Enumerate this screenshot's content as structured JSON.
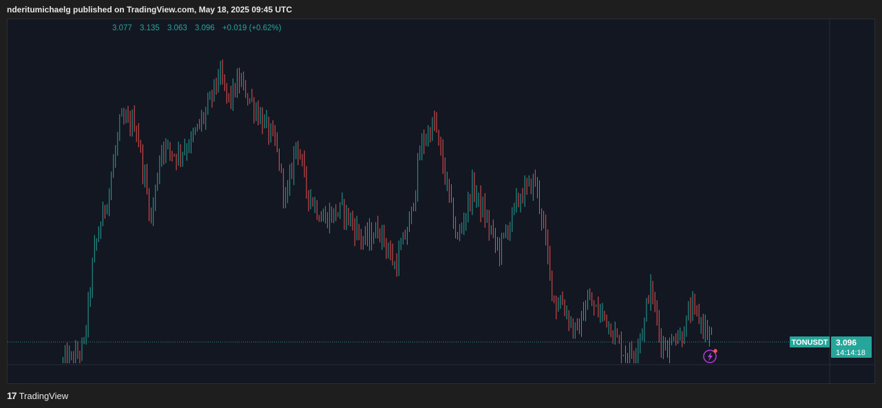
{
  "header": {
    "credit": "nderitumichaelg published on TradingView.com, May 18, 2025 09:45 UTC"
  },
  "ohlc": {
    "open": "3.077",
    "high": "3.135",
    "low": "3.063",
    "close": "3.096",
    "change": "+0.019 (+0.62%)"
  },
  "symbol_badge": {
    "symbol": "TONUSDT",
    "price": "3.096",
    "countdown": "14:14:18"
  },
  "footer": {
    "brand": "TradingView"
  },
  "colors": {
    "up": "#26a69a",
    "down": "#ef5350",
    "background": "#131722",
    "badge": "#26a69a",
    "alert_icon": "#b93bdb"
  },
  "icons": {
    "alert": "lightning-alert-icon"
  },
  "chart_data": {
    "type": "candlestick",
    "symbol": "TONUSDT",
    "grid": false,
    "last_price": 3.096,
    "price_line": "dotted",
    "path": [
      [
        0,
        0.0
      ],
      [
        12,
        0.02
      ],
      [
        20,
        0.05
      ],
      [
        30,
        0.35
      ],
      [
        45,
        0.55
      ],
      [
        55,
        0.75
      ],
      [
        70,
        0.75
      ],
      [
        80,
        0.55
      ],
      [
        85,
        0.45
      ],
      [
        95,
        0.68
      ],
      [
        110,
        0.65
      ],
      [
        125,
        0.7
      ],
      [
        140,
        0.8
      ],
      [
        150,
        0.9
      ],
      [
        160,
        0.82
      ],
      [
        170,
        0.88
      ],
      [
        190,
        0.77
      ],
      [
        205,
        0.68
      ],
      [
        215,
        0.5
      ],
      [
        225,
        0.7
      ],
      [
        235,
        0.54
      ],
      [
        250,
        0.45
      ],
      [
        270,
        0.48
      ],
      [
        290,
        0.38
      ],
      [
        305,
        0.42
      ],
      [
        320,
        0.3
      ],
      [
        335,
        0.45
      ],
      [
        345,
        0.68
      ],
      [
        358,
        0.75
      ],
      [
        372,
        0.52
      ],
      [
        380,
        0.38
      ],
      [
        395,
        0.55
      ],
      [
        410,
        0.43
      ],
      [
        420,
        0.35
      ],
      [
        440,
        0.52
      ],
      [
        455,
        0.57
      ],
      [
        462,
        0.45
      ],
      [
        470,
        0.26
      ],
      [
        475,
        0.18
      ],
      [
        480,
        0.2
      ],
      [
        490,
        0.12
      ],
      [
        495,
        0.09
      ],
      [
        500,
        0.14
      ],
      [
        505,
        0.2
      ],
      [
        515,
        0.16
      ],
      [
        522,
        0.15
      ],
      [
        530,
        0.1
      ],
      [
        537,
        0.05
      ],
      [
        542,
        0.03
      ],
      [
        550,
        0.03
      ],
      [
        555,
        0.08
      ],
      [
        560,
        0.12
      ],
      [
        565,
        0.24
      ],
      [
        570,
        0.18
      ],
      [
        575,
        0.08
      ],
      [
        585,
        0.04
      ],
      [
        588,
        0.1
      ],
      [
        595,
        0.08
      ],
      [
        600,
        0.12
      ],
      [
        605,
        0.17
      ],
      [
        610,
        0.15
      ],
      [
        615,
        0.13
      ],
      [
        620,
        0.1
      ],
      [
        625,
        0.08
      ]
    ],
    "n_candles": 310
  }
}
